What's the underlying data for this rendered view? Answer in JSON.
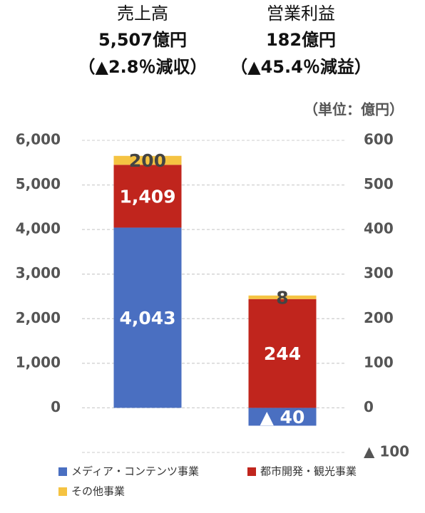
{
  "chart_data": {
    "type": "stacked_bar",
    "unit_label": "（単位：億円）",
    "categories": [
      "売上高",
      "営業利益"
    ],
    "category_amounts": [
      "5,507億円",
      "182億円"
    ],
    "category_changes": [
      "（▲2.8％減収）",
      "（▲45.4％減益）"
    ],
    "category_axes": [
      "y",
      "y2"
    ],
    "series": [
      {
        "name": "メディア・コンテンツ事業",
        "color": "#4a6fc1",
        "values": [
          4043,
          -40
        ],
        "value_labels": [
          "4,043",
          "▲ 40"
        ]
      },
      {
        "name": "都市開発・観光事業",
        "color": "#c0251d",
        "values": [
          1409,
          244
        ],
        "value_labels": [
          "1,409",
          "244"
        ]
      },
      {
        "name": "その他事業",
        "color": "#f5c342",
        "values": [
          200,
          8
        ],
        "value_labels": [
          "200",
          "8"
        ]
      }
    ],
    "ylim": [
      -1000,
      6000
    ],
    "yticks": [
      0,
      {
        "value": 1000,
        "label": "1,000"
      },
      {
        "value": 2000,
        "label": "2,000"
      },
      {
        "value": 3000,
        "label": "3,000"
      },
      {
        "value": 4000,
        "label": "4,000"
      },
      {
        "value": 5000,
        "label": "5,000"
      },
      {
        "value": 6000,
        "label": "6,000"
      }
    ],
    "y2lim": [
      -100,
      600
    ],
    "y2ticks": [
      {
        "value": -100,
        "label": "▲ 100"
      },
      0,
      100,
      200,
      300,
      400,
      500,
      600
    ],
    "grid": true
  }
}
